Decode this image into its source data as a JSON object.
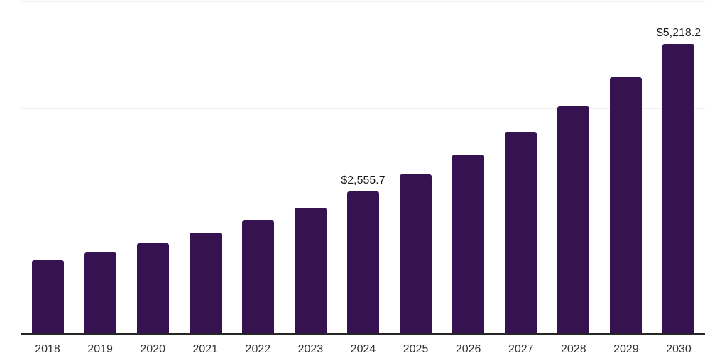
{
  "chart_data": {
    "type": "bar",
    "categories": [
      "2018",
      "2019",
      "2020",
      "2021",
      "2022",
      "2023",
      "2024",
      "2025",
      "2026",
      "2027",
      "2028",
      "2029",
      "2030"
    ],
    "values": [
      1315,
      1460,
      1630,
      1820,
      2035,
      2265,
      2555.7,
      2870,
      3220,
      3630,
      4090,
      4615,
      5218.2
    ],
    "data_labels": [
      "",
      "",
      "",
      "",
      "",
      "",
      "$2,555.7",
      "",
      "",
      "",
      "",
      "",
      "$5,218.2"
    ],
    "title": "",
    "xlabel": "",
    "ylabel": "",
    "ylim": [
      0,
      5983
    ],
    "grid": "horizontal",
    "legend": "none",
    "colors": {
      "bar": "#361250",
      "gridline": "#f1f1f1",
      "axis_line": "#262626",
      "tick_label": "#333333",
      "data_label": "#1a1a1a",
      "background": "#ffffff"
    }
  }
}
